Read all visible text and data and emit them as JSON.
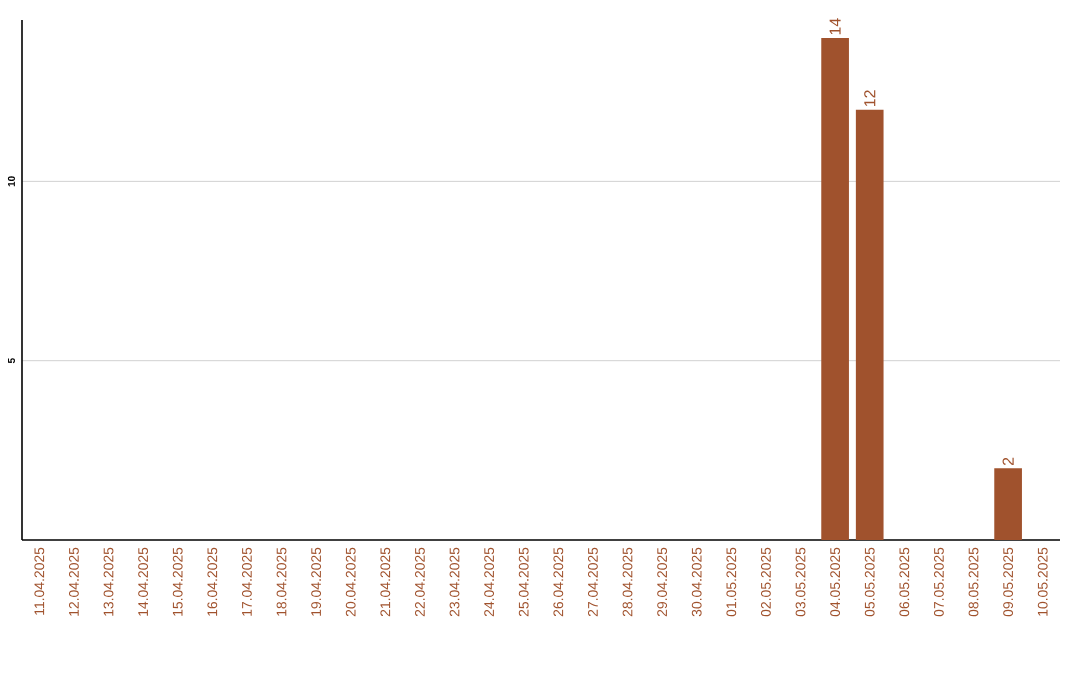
{
  "chart_data": {
    "type": "bar",
    "categories": [
      "11.04.2025",
      "12.04.2025",
      "13.04.2025",
      "14.04.2025",
      "15.04.2025",
      "16.04.2025",
      "17.04.2025",
      "18.04.2025",
      "19.04.2025",
      "20.04.2025",
      "21.04.2025",
      "22.04.2025",
      "23.04.2025",
      "24.04.2025",
      "25.04.2025",
      "26.04.2025",
      "27.04.2025",
      "28.04.2025",
      "29.04.2025",
      "30.04.2025",
      "01.05.2025",
      "02.05.2025",
      "03.05.2025",
      "04.05.2025",
      "05.05.2025",
      "06.05.2025",
      "07.05.2025",
      "08.05.2025",
      "09.05.2025",
      "10.05.2025"
    ],
    "values": [
      0,
      0,
      0,
      0,
      0,
      0,
      0,
      0,
      0,
      0,
      0,
      0,
      0,
      0,
      0,
      0,
      0,
      0,
      0,
      0,
      0,
      0,
      0,
      14,
      12,
      0,
      0,
      0,
      2,
      0
    ],
    "value_labels": [
      null,
      null,
      null,
      null,
      null,
      null,
      null,
      null,
      null,
      null,
      null,
      null,
      null,
      null,
      null,
      null,
      null,
      null,
      null,
      null,
      null,
      null,
      null,
      "14",
      "12",
      null,
      null,
      null,
      "2",
      null
    ],
    "color": "#a0522d",
    "ylim": [
      0,
      14.5
    ],
    "yticks": [
      5,
      10
    ],
    "grid": "y"
  }
}
